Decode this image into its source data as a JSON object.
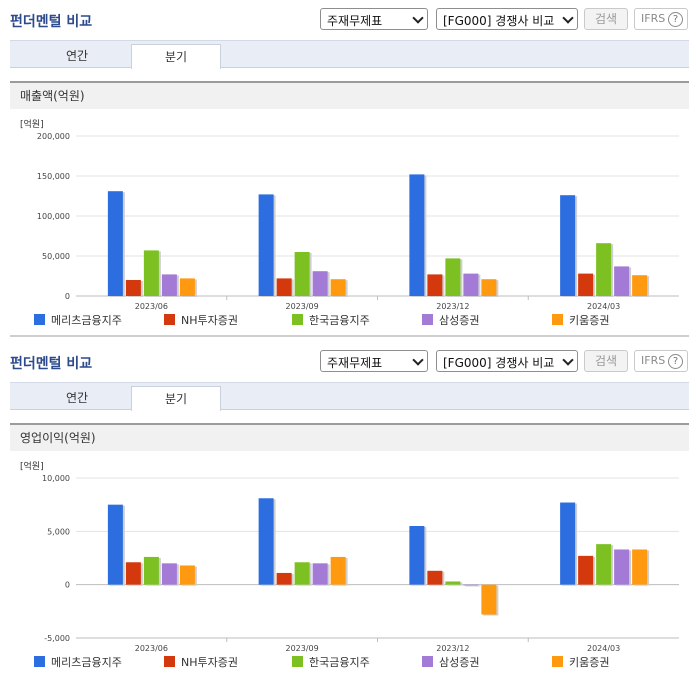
{
  "panels": [
    {
      "title": "펀더멘털 비교",
      "select_statement": "주재무제표",
      "select_peer": "[FG000] 경쟁사 비교",
      "search_label": "검색",
      "ifrs_label": "IFRS",
      "help_glyph": "?",
      "tabs": [
        "연간",
        "분기"
      ],
      "active_tab": "분기",
      "metric": "매출액(억원)",
      "unit": "[억원]",
      "chart_data": {
        "type": "bar",
        "categories": [
          "2023/06",
          "2023/09",
          "2023/12",
          "2024/03"
        ],
        "ylim": [
          0,
          200000
        ],
        "yticks": [
          0,
          50000,
          100000,
          150000,
          200000
        ],
        "ytick_labels": [
          "0",
          "50,000",
          "100,000",
          "150,000",
          "200,000"
        ],
        "grid": true,
        "legend": "bottom",
        "series": [
          {
            "name": "메리츠금융지주",
            "color": "#2c6de0",
            "values": [
              131000,
              127000,
              152000,
              126000
            ]
          },
          {
            "name": "NH투자증권",
            "color": "#d4380d",
            "values": [
              20000,
              22000,
              27000,
              28000
            ]
          },
          {
            "name": "한국금융지주",
            "color": "#7cc022",
            "values": [
              57000,
              55000,
              47000,
              66000
            ]
          },
          {
            "name": "삼성증권",
            "color": "#a37ad6",
            "values": [
              27000,
              31000,
              28000,
              37000
            ]
          },
          {
            "name": "키움증권",
            "color": "#ff9a10",
            "values": [
              22000,
              21000,
              21000,
              26000
            ]
          }
        ]
      }
    },
    {
      "title": "펀더멘털 비교",
      "select_statement": "주재무제표",
      "select_peer": "[FG000] 경쟁사 비교",
      "search_label": "검색",
      "ifrs_label": "IFRS",
      "help_glyph": "?",
      "tabs": [
        "연간",
        "분기"
      ],
      "active_tab": "분기",
      "metric": "영업이익(억원)",
      "unit": "[억원]",
      "chart_data": {
        "type": "bar",
        "categories": [
          "2023/06",
          "2023/09",
          "2023/12",
          "2024/03"
        ],
        "ylim": [
          -5000,
          10000
        ],
        "yticks": [
          -5000,
          0,
          5000,
          10000
        ],
        "ytick_labels": [
          "-5,000",
          "0",
          "5,000",
          "10,000"
        ],
        "grid": true,
        "legend": "bottom",
        "series": [
          {
            "name": "메리츠금융지주",
            "color": "#2c6de0",
            "values": [
              7500,
              8100,
              5500,
              7700
            ]
          },
          {
            "name": "NH투자증권",
            "color": "#d4380d",
            "values": [
              2100,
              1100,
              1300,
              2700
            ]
          },
          {
            "name": "한국금융지주",
            "color": "#7cc022",
            "values": [
              2600,
              2100,
              300,
              3800
            ]
          },
          {
            "name": "삼성증권",
            "color": "#a37ad6",
            "values": [
              2000,
              2000,
              0,
              3300
            ]
          },
          {
            "name": "키움증권",
            "color": "#ff9a10",
            "values": [
              1800,
              2600,
              -2800,
              3300
            ]
          }
        ]
      }
    }
  ]
}
